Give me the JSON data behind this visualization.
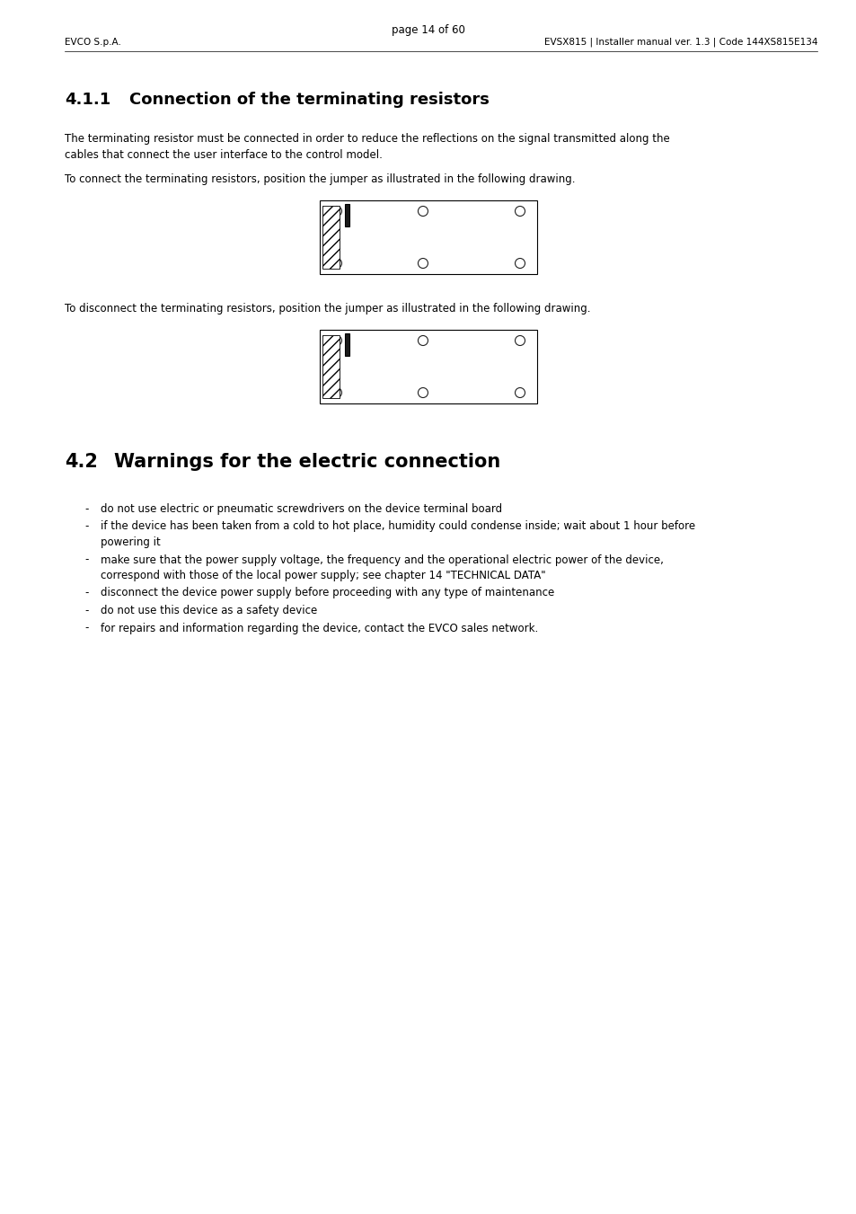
{
  "header_left": "EVCO S.p.A.",
  "header_right": "EVSX815 | Installer manual ver. 1.3 | Code 144XS815E134",
  "para1_line1": "The terminating resistor must be connected in order to reduce the reflections on the signal transmitted along the",
  "para1_line2": "cables that connect the user interface to the control model.",
  "para2_connect": "To connect the terminating resistors, position the jumper as illustrated in the following drawing.",
  "para2_disconnect": "To disconnect the terminating resistors, position the jumper as illustrated in the following drawing.",
  "section_42_title_num": "4.2",
  "section_42_title_text": "Warnings for the electric connection",
  "bullet_items": [
    [
      "do not use electric or pneumatic screwdrivers on the device terminal board"
    ],
    [
      "if the device has been taken from a cold to hot place, humidity could condense inside; wait about 1 hour before",
      "powering it"
    ],
    [
      "make sure that the power supply voltage, the frequency and the operational electric power of the device,",
      "correspond with those of the local power supply; see chapter 14 \"TECHNICAL DATA\""
    ],
    [
      "disconnect the device power supply before proceeding with any type of maintenance"
    ],
    [
      "do not use this device as a safety device"
    ],
    [
      "for repairs and information regarding the device, contact the EVCO sales network."
    ]
  ],
  "footer": "page 14 of 60",
  "bg_color": "#ffffff",
  "text_color": "#000000"
}
